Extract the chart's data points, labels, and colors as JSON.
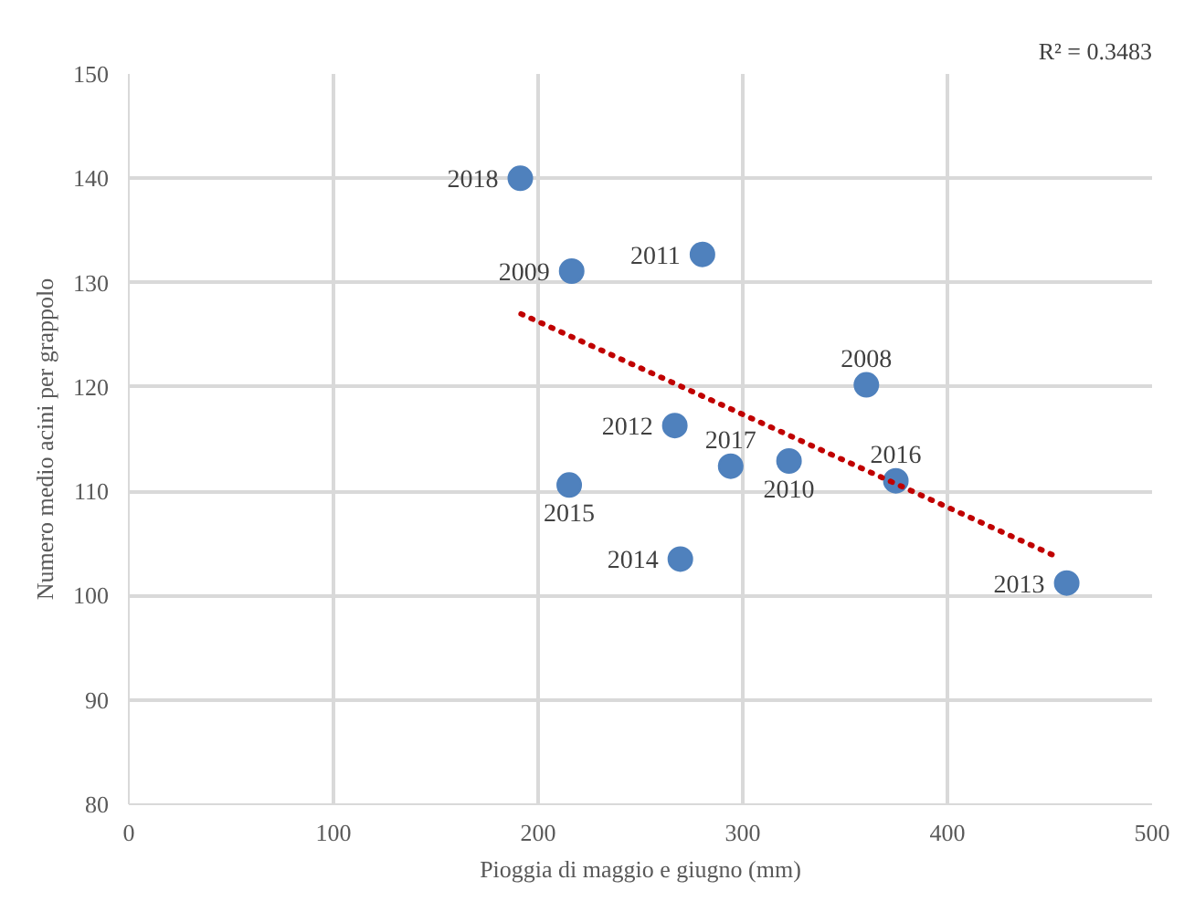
{
  "chart_data": {
    "type": "scatter",
    "xlabel": "Pioggia di maggio e giugno (mm)",
    "ylabel": "Numero medio acini per grappolo",
    "x": [
      191.3,
      216.4,
      280.3,
      360.4,
      266.8,
      294.1,
      322.6,
      374.8,
      215.2,
      269.5,
      458.3
    ],
    "series": [
      {
        "color": "#4f81bd",
        "values": [
          140.0,
          131.1,
          132.7,
          120.2,
          116.3,
          112.4,
          112.9,
          111.0,
          110.6,
          103.5,
          101.2
        ]
      },
      {
        "type": "line",
        "color": "#c00000",
        "line_style": "dotted",
        "marker": "none",
        "x": [
          191.7,
          453.7
        ],
        "values": [
          127.0,
          103.7
        ]
      }
    ],
    "marker": "circle",
    "xlim": [
      0,
      500
    ],
    "ylim": [
      80,
      150
    ],
    "xticks": [
      0,
      100,
      200,
      300,
      400,
      500
    ],
    "yticks": [
      80,
      90,
      100,
      110,
      120,
      130,
      140,
      150
    ],
    "grid": true,
    "annotations": [
      {
        "text": "2018",
        "x": 191.3,
        "y": 140.0
      },
      {
        "text": "2009",
        "x": 216.4,
        "y": 131.1
      },
      {
        "text": "2011",
        "x": 280.3,
        "y": 132.7
      },
      {
        "text": "2008",
        "x": 360.4,
        "y": 120.2
      },
      {
        "text": "2012",
        "x": 266.8,
        "y": 116.3
      },
      {
        "text": "2017",
        "x": 294.1,
        "y": 112.4
      },
      {
        "text": "2010",
        "x": 322.6,
        "y": 112.9
      },
      {
        "text": "2016",
        "x": 374.8,
        "y": 111.0
      },
      {
        "text": "2015",
        "x": 215.2,
        "y": 110.6
      },
      {
        "text": "2014",
        "x": 269.5,
        "y": 103.5
      },
      {
        "text": "2013",
        "x": 458.3,
        "y": 101.2
      },
      "R² = 0.3483"
    ]
  }
}
